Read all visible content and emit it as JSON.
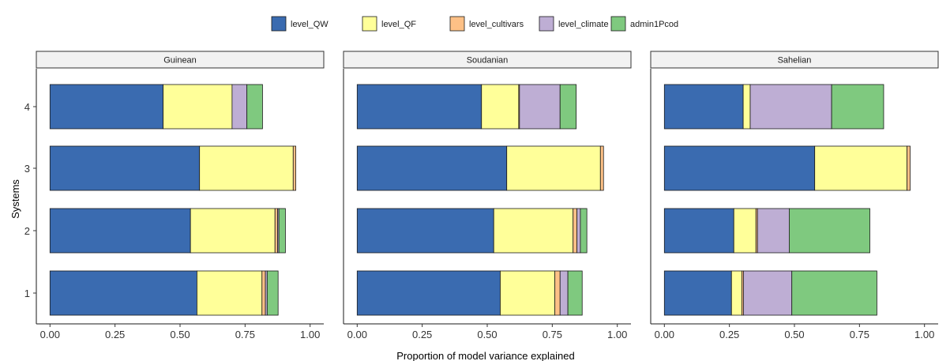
{
  "chart_data": {
    "type": "bar",
    "orientation": "horizontal",
    "stacked": true,
    "xlabel": "Proportion of model variance explained",
    "ylabel": "Systems",
    "xlim": [
      0,
      1
    ],
    "x_ticks": [
      "0.00",
      "0.25",
      "0.50",
      "0.75",
      "1.00"
    ],
    "categories": [
      "1",
      "2",
      "3",
      "4"
    ],
    "legend_position": "top",
    "series_names": [
      "level_QW",
      "level_QF",
      "level_cultivars",
      "level_climate",
      "admin1Pcod"
    ],
    "series_colors": [
      "#3a6bb0",
      "#ffff99",
      "#fdc086",
      "#beaed4",
      "#7fc97f"
    ],
    "panels": [
      {
        "name": "Guinean",
        "values": [
          [
            0.565,
            0.25,
            0.013,
            0.007,
            0.042
          ],
          [
            0.54,
            0.325,
            0.01,
            0.005,
            0.025
          ],
          [
            0.575,
            0.36,
            0.01,
            0.0,
            0.0
          ],
          [
            0.435,
            0.265,
            0.0,
            0.057,
            0.06
          ]
        ]
      },
      {
        "name": "Soudanian",
        "values": [
          [
            0.55,
            0.21,
            0.02,
            0.03,
            0.055
          ],
          [
            0.525,
            0.305,
            0.015,
            0.013,
            0.025
          ],
          [
            0.575,
            0.36,
            0.012,
            0.0,
            0.0
          ],
          [
            0.478,
            0.143,
            0.003,
            0.156,
            0.062
          ]
        ]
      },
      {
        "name": "Sahelian",
        "values": [
          [
            0.258,
            0.04,
            0.006,
            0.186,
            0.327
          ],
          [
            0.267,
            0.085,
            0.006,
            0.122,
            0.31
          ],
          [
            0.578,
            0.355,
            0.012,
            0.0,
            0.0
          ],
          [
            0.303,
            0.027,
            0.0,
            0.313,
            0.2
          ]
        ]
      }
    ]
  }
}
